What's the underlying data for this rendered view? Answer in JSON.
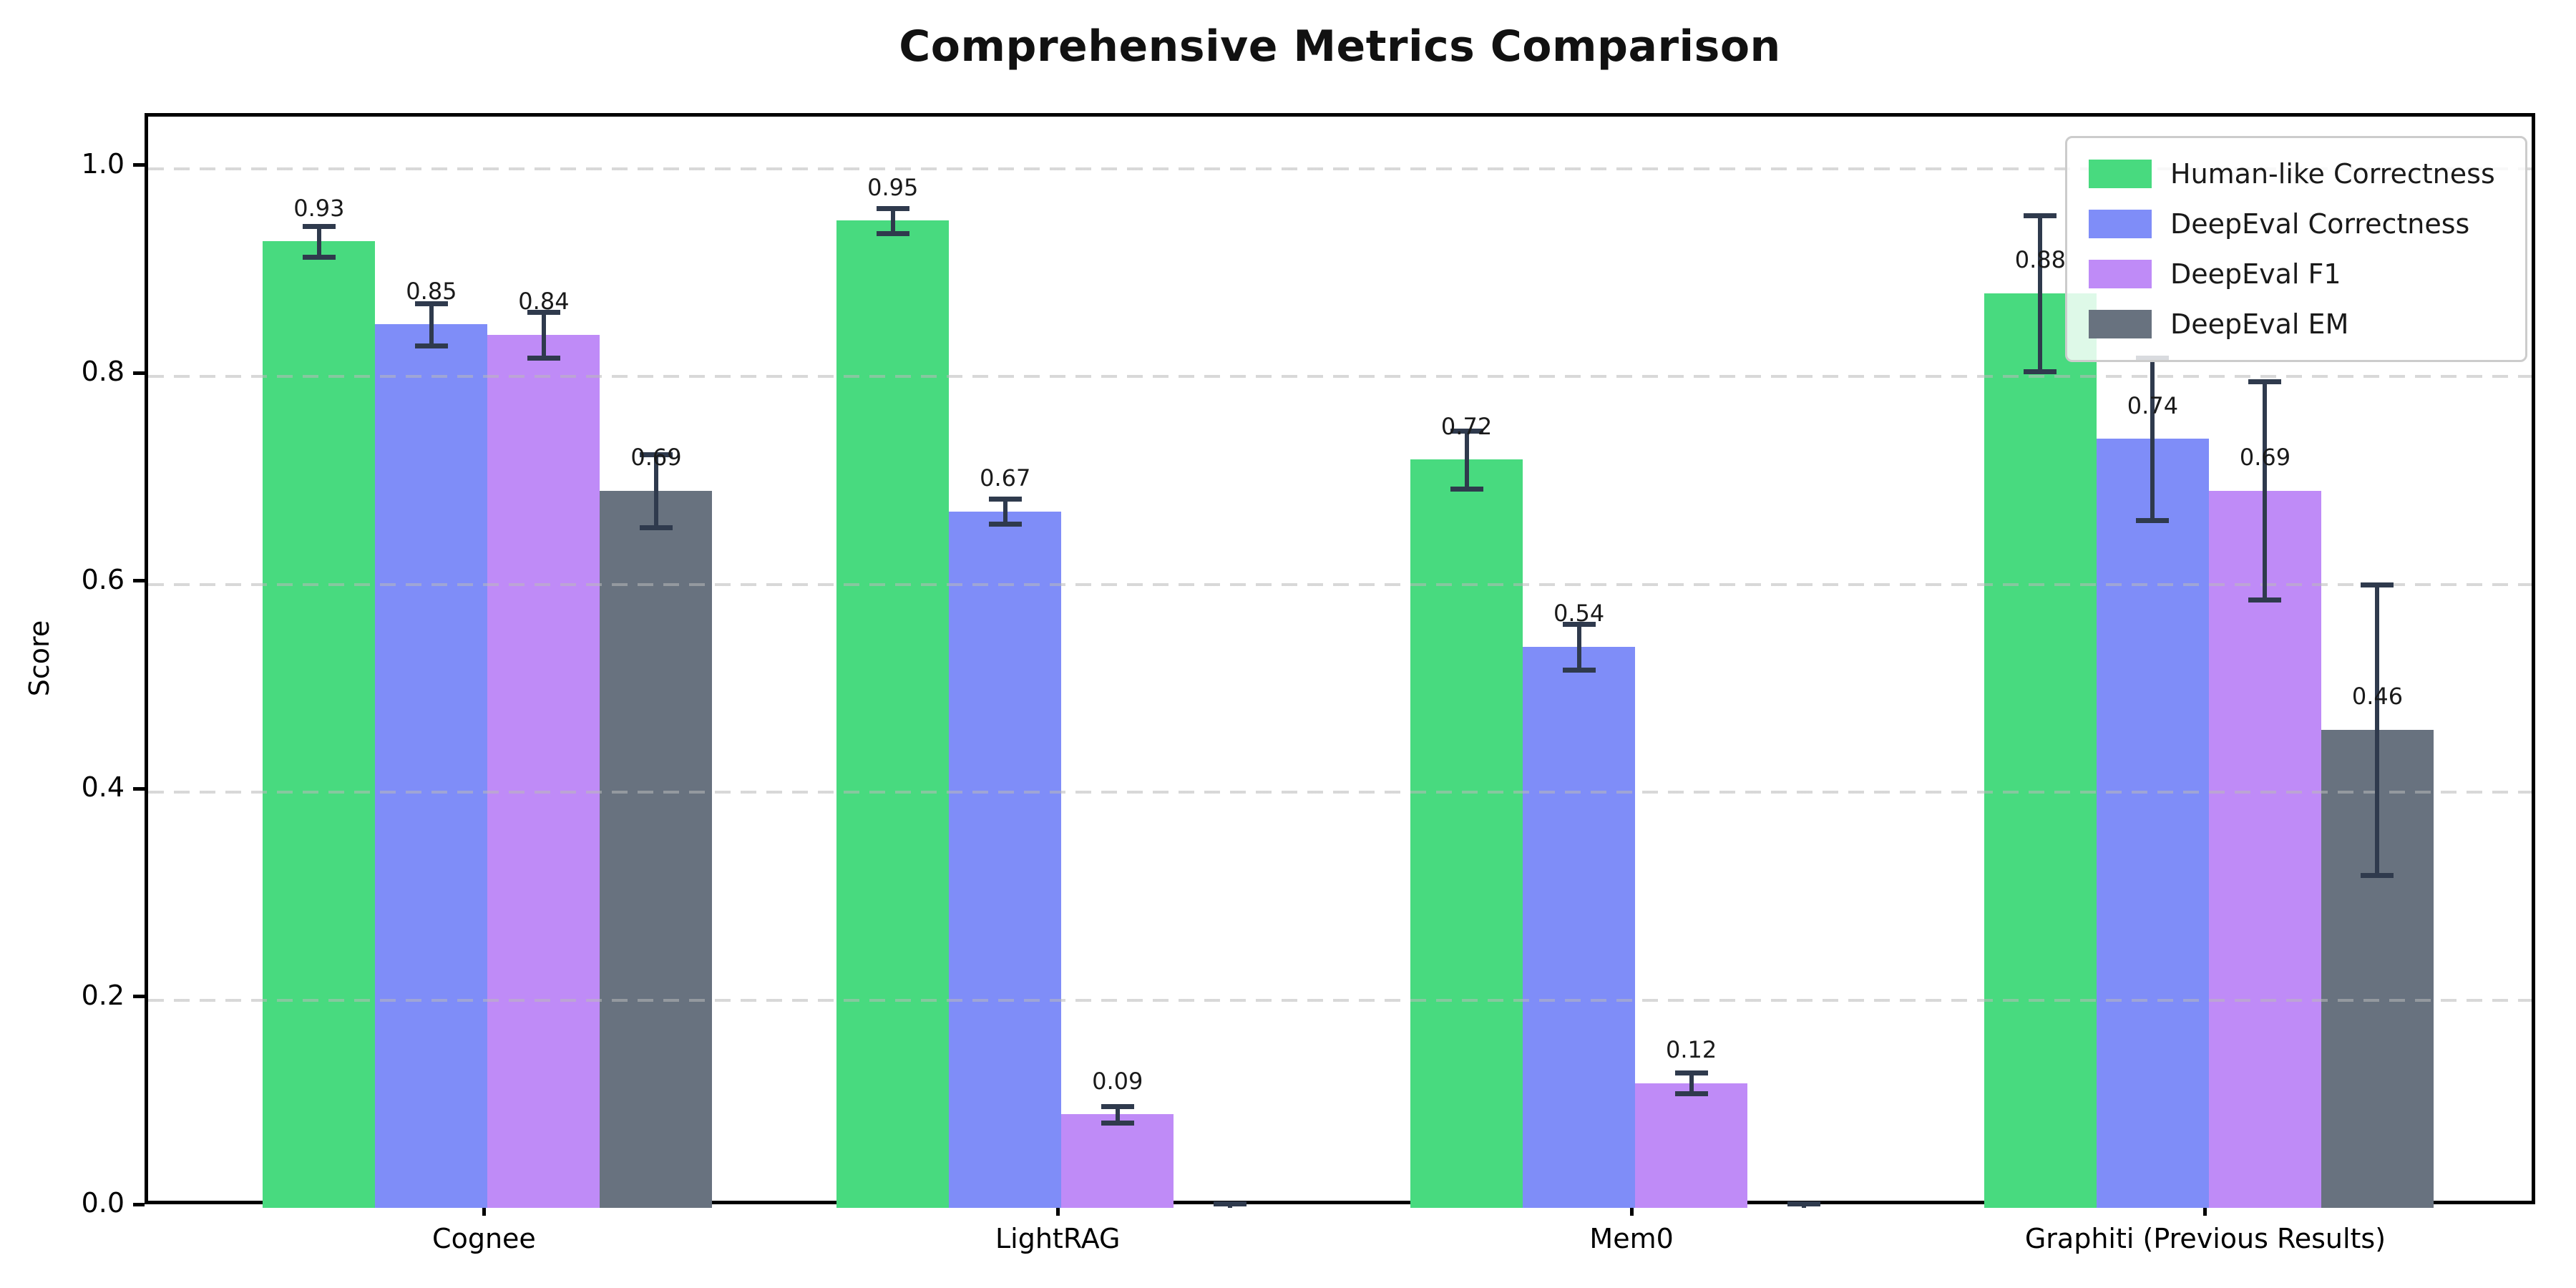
{
  "figure": {
    "background": "#ffffff"
  },
  "chart_data": {
    "type": "bar",
    "title": "Comprehensive Metrics Comparison",
    "xlabel": "",
    "ylabel": "Score",
    "ylim": [
      0,
      1.05
    ],
    "yticks": [
      0.0,
      0.2,
      0.4,
      0.6,
      0.8,
      1.0
    ],
    "ytick_labels": [
      "0.0",
      "0.2",
      "0.4",
      "0.6",
      "0.8",
      "1.0"
    ],
    "categories": [
      "Cognee",
      "LightRAG",
      "Mem0",
      "Graphiti (Previous Results)"
    ],
    "series": [
      {
        "name": "Human-like Correctness",
        "color": "#48da7f",
        "values": [
          0.93,
          0.95,
          0.72,
          0.88
        ],
        "errors": [
          0.015,
          0.012,
          0.028,
          0.075
        ],
        "labels": [
          "0.93",
          "0.95",
          "0.72",
          "0.88"
        ]
      },
      {
        "name": "DeepEval Correctness",
        "color": "#7f8df8",
        "values": [
          0.85,
          0.67,
          0.54,
          0.74
        ],
        "errors": [
          0.02,
          0.012,
          0.022,
          0.078
        ],
        "labels": [
          "0.85",
          "0.67",
          "0.54",
          "0.74"
        ]
      },
      {
        "name": "DeepEval F1",
        "color": "#bf8bf7",
        "values": [
          0.84,
          0.09,
          0.12,
          0.69
        ],
        "errors": [
          0.022,
          0.008,
          0.01,
          0.105
        ],
        "labels": [
          "0.84",
          "0.09",
          "0.12",
          "0.69"
        ]
      },
      {
        "name": "DeepEval EM",
        "color": "#68727f",
        "values": [
          0.69,
          0.0,
          0.0,
          0.46
        ],
        "errors": [
          0.035,
          0.004,
          0.004,
          0.14
        ],
        "labels": [
          "0.69",
          "",
          "",
          "0.46"
        ]
      }
    ],
    "error_bar_color": "#2f3a4d",
    "grid": {
      "axis": "y",
      "style": "dashed",
      "color": "#b9b9b9"
    },
    "legend": {
      "location": "upper right"
    },
    "value_label_offset": 0.03
  }
}
